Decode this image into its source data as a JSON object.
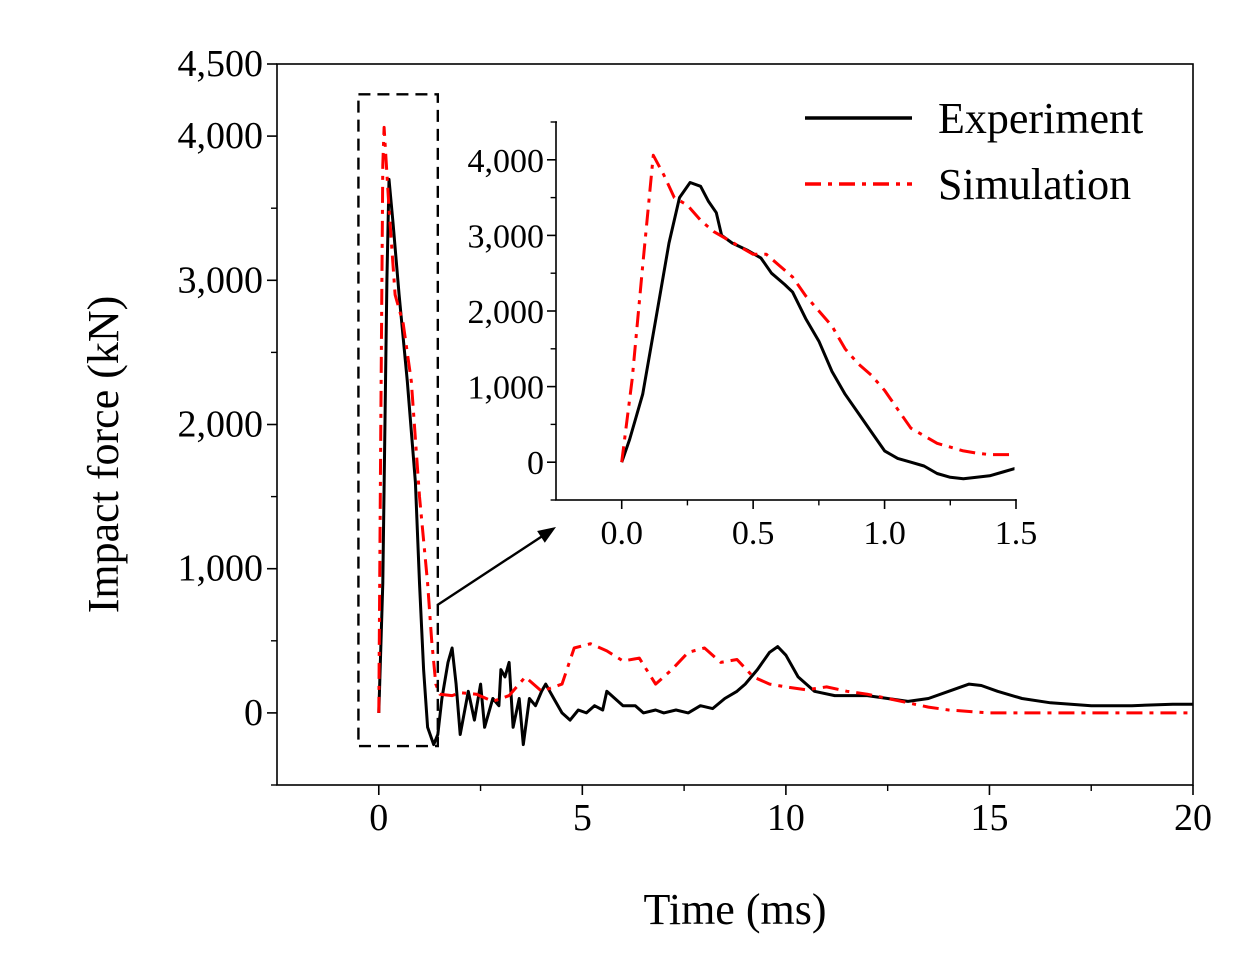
{
  "chart_data": [
    {
      "id": "main",
      "type": "line",
      "xlabel": "Time (ms)",
      "ylabel": "Impact force (kN)",
      "xlim": [
        -2.5,
        20
      ],
      "ylim": [
        -500,
        4500
      ],
      "xticks": [
        0,
        5,
        10,
        15,
        20
      ],
      "yticks": [
        0,
        1000,
        2000,
        3000,
        4000,
        4500
      ],
      "xtick_labels": [
        "0",
        "5",
        "10",
        "15",
        "20"
      ],
      "ytick_labels": [
        "0",
        "1,000",
        "2,000",
        "3,000",
        "4,000",
        "4,500"
      ],
      "legend": {
        "position": "top-right",
        "entries": [
          "Experiment",
          "Simulation"
        ]
      },
      "series": [
        {
          "name": "Experiment",
          "color": "#000000",
          "style": "solid",
          "points": [
            [
              0,
              0
            ],
            [
              0.1,
              900
            ],
            [
              0.2,
              3000
            ],
            [
              0.25,
              3700
            ],
            [
              0.35,
              3400
            ],
            [
              0.5,
              2900
            ],
            [
              0.7,
              2300
            ],
            [
              0.9,
              1600
            ],
            [
              1.0,
              900
            ],
            [
              1.1,
              300
            ],
            [
              1.2,
              -100
            ],
            [
              1.35,
              -220
            ],
            [
              1.45,
              -150
            ],
            [
              1.55,
              100
            ],
            [
              1.7,
              350
            ],
            [
              1.8,
              450
            ],
            [
              1.9,
              200
            ],
            [
              2.0,
              -150
            ],
            [
              2.2,
              150
            ],
            [
              2.35,
              -50
            ],
            [
              2.5,
              200
            ],
            [
              2.6,
              -100
            ],
            [
              2.8,
              100
            ],
            [
              2.95,
              50
            ],
            [
              3.0,
              300
            ],
            [
              3.1,
              250
            ],
            [
              3.2,
              350
            ],
            [
              3.3,
              -100
            ],
            [
              3.45,
              100
            ],
            [
              3.55,
              -220
            ],
            [
              3.7,
              100
            ],
            [
              3.85,
              50
            ],
            [
              4.0,
              150
            ],
            [
              4.1,
              200
            ],
            [
              4.3,
              100
            ],
            [
              4.5,
              0
            ],
            [
              4.7,
              -50
            ],
            [
              4.9,
              20
            ],
            [
              5.1,
              0
            ],
            [
              5.3,
              50
            ],
            [
              5.5,
              20
            ],
            [
              5.6,
              150
            ],
            [
              5.8,
              100
            ],
            [
              6.0,
              50
            ],
            [
              6.3,
              50
            ],
            [
              6.5,
              0
            ],
            [
              6.8,
              20
            ],
            [
              7.0,
              0
            ],
            [
              7.3,
              20
            ],
            [
              7.6,
              0
            ],
            [
              7.9,
              50
            ],
            [
              8.2,
              30
            ],
            [
              8.5,
              100
            ],
            [
              8.8,
              150
            ],
            [
              9.0,
              200
            ],
            [
              9.3,
              300
            ],
            [
              9.6,
              420
            ],
            [
              9.8,
              460
            ],
            [
              10.0,
              400
            ],
            [
              10.3,
              250
            ],
            [
              10.7,
              150
            ],
            [
              11.2,
              120
            ],
            [
              12.0,
              120
            ],
            [
              12.5,
              100
            ],
            [
              13.0,
              80
            ],
            [
              13.5,
              100
            ],
            [
              14.0,
              150
            ],
            [
              14.5,
              200
            ],
            [
              14.8,
              190
            ],
            [
              15.2,
              150
            ],
            [
              15.8,
              100
            ],
            [
              16.5,
              70
            ],
            [
              17.5,
              50
            ],
            [
              18.5,
              50
            ],
            [
              19.5,
              60
            ],
            [
              20.0,
              60
            ]
          ]
        },
        {
          "name": "Simulation",
          "color": "#ff0000",
          "style": "dash-dot",
          "points": [
            [
              0,
              0
            ],
            [
              0.05,
              2000
            ],
            [
              0.1,
              3800
            ],
            [
              0.13,
              4060
            ],
            [
              0.25,
              3500
            ],
            [
              0.4,
              2900
            ],
            [
              0.6,
              2700
            ],
            [
              0.8,
              2300
            ],
            [
              1.0,
              1500
            ],
            [
              1.2,
              900
            ],
            [
              1.3,
              500
            ],
            [
              1.4,
              200
            ],
            [
              1.5,
              130
            ],
            [
              1.8,
              120
            ],
            [
              2.0,
              140
            ],
            [
              2.4,
              130
            ],
            [
              2.8,
              80
            ],
            [
              3.2,
              120
            ],
            [
              3.6,
              250
            ],
            [
              4.0,
              150
            ],
            [
              4.5,
              200
            ],
            [
              4.8,
              450
            ],
            [
              5.2,
              480
            ],
            [
              5.6,
              430
            ],
            [
              6.0,
              360
            ],
            [
              6.4,
              380
            ],
            [
              6.8,
              200
            ],
            [
              7.2,
              300
            ],
            [
              7.6,
              420
            ],
            [
              8.0,
              450
            ],
            [
              8.4,
              350
            ],
            [
              8.8,
              370
            ],
            [
              9.2,
              250
            ],
            [
              9.6,
              200
            ],
            [
              10.0,
              180
            ],
            [
              10.5,
              160
            ],
            [
              11.0,
              180
            ],
            [
              11.5,
              150
            ],
            [
              12.0,
              130
            ],
            [
              12.5,
              100
            ],
            [
              13.0,
              70
            ],
            [
              13.5,
              40
            ],
            [
              14.0,
              20
            ],
            [
              15.0,
              0
            ],
            [
              16.0,
              0
            ],
            [
              17.0,
              0
            ],
            [
              18.0,
              0
            ],
            [
              19.0,
              0
            ],
            [
              20.0,
              0
            ]
          ]
        }
      ]
    },
    {
      "id": "inset",
      "type": "line",
      "xlim": [
        -0.25,
        1.5
      ],
      "ylim": [
        -500,
        4500
      ],
      "xticks": [
        0.0,
        0.5,
        1.0,
        1.5
      ],
      "yticks": [
        0,
        1000,
        2000,
        3000,
        4000
      ],
      "xtick_labels": [
        "0.0",
        "0.5",
        "1.0",
        "1.5"
      ],
      "ytick_labels": [
        "0",
        "1,000",
        "2,000",
        "3,000",
        "4,000"
      ],
      "series": [
        {
          "name": "Experiment",
          "color": "#000000",
          "style": "solid",
          "points": [
            [
              0,
              0
            ],
            [
              0.03,
              300
            ],
            [
              0.08,
              900
            ],
            [
              0.13,
              1900
            ],
            [
              0.18,
              2900
            ],
            [
              0.22,
              3500
            ],
            [
              0.26,
              3700
            ],
            [
              0.3,
              3650
            ],
            [
              0.33,
              3450
            ],
            [
              0.36,
              3300
            ],
            [
              0.38,
              3000
            ],
            [
              0.42,
              2900
            ],
            [
              0.48,
              2800
            ],
            [
              0.53,
              2700
            ],
            [
              0.57,
              2500
            ],
            [
              0.62,
              2350
            ],
            [
              0.65,
              2250
            ],
            [
              0.7,
              1900
            ],
            [
              0.75,
              1600
            ],
            [
              0.8,
              1200
            ],
            [
              0.85,
              900
            ],
            [
              0.9,
              650
            ],
            [
              0.95,
              400
            ],
            [
              1.0,
              150
            ],
            [
              1.05,
              50
            ],
            [
              1.1,
              0
            ],
            [
              1.15,
              -50
            ],
            [
              1.2,
              -150
            ],
            [
              1.25,
              -200
            ],
            [
              1.3,
              -220
            ],
            [
              1.35,
              -200
            ],
            [
              1.4,
              -180
            ],
            [
              1.45,
              -130
            ],
            [
              1.5,
              -80
            ]
          ]
        },
        {
          "name": "Simulation",
          "color": "#ff0000",
          "style": "dash-dot",
          "points": [
            [
              0,
              0
            ],
            [
              0.04,
              1100
            ],
            [
              0.08,
              2600
            ],
            [
              0.12,
              4060
            ],
            [
              0.16,
              3800
            ],
            [
              0.2,
              3500
            ],
            [
              0.25,
              3400
            ],
            [
              0.3,
              3200
            ],
            [
              0.35,
              3050
            ],
            [
              0.4,
              2950
            ],
            [
              0.45,
              2850
            ],
            [
              0.5,
              2750
            ],
            [
              0.55,
              2750
            ],
            [
              0.6,
              2600
            ],
            [
              0.65,
              2450
            ],
            [
              0.7,
              2200
            ],
            [
              0.75,
              2000
            ],
            [
              0.8,
              1800
            ],
            [
              0.85,
              1500
            ],
            [
              0.9,
              1300
            ],
            [
              0.95,
              1150
            ],
            [
              1.0,
              950
            ],
            [
              1.05,
              700
            ],
            [
              1.1,
              450
            ],
            [
              1.15,
              350
            ],
            [
              1.2,
              250
            ],
            [
              1.25,
              200
            ],
            [
              1.3,
              150
            ],
            [
              1.35,
              120
            ],
            [
              1.4,
              100
            ],
            [
              1.45,
              100
            ],
            [
              1.5,
              100
            ]
          ]
        }
      ]
    }
  ]
}
